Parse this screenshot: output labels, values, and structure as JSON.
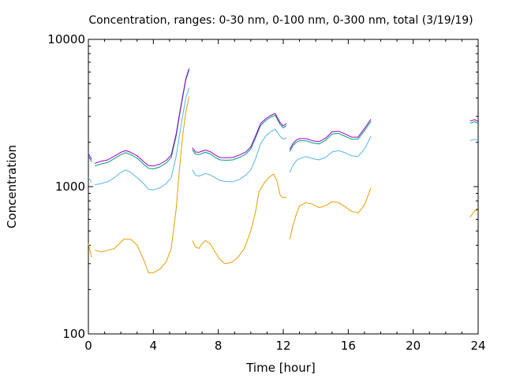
{
  "chart_data": {
    "type": "line",
    "title": "Concentration, ranges: 0-30 nm, 0-100 nm, 0-300 nm, total (3/19/19)",
    "xlabel": "Time [hour]",
    "ylabel": "Concentration",
    "xlim": [
      0,
      24
    ],
    "ylim": [
      100,
      10000
    ],
    "yscale": "log",
    "grid": false,
    "legend": "none",
    "x_ticks": [
      0,
      4,
      8,
      12,
      16,
      20,
      24
    ],
    "x_tick_labels": [
      "0",
      "4",
      "8",
      "12",
      "16",
      "20",
      "24"
    ],
    "y_ticks": [
      100,
      1000,
      10000
    ],
    "y_tick_labels": [
      "100",
      "1000",
      "10000"
    ],
    "series": [
      {
        "color": "#e69f00",
        "segments": [
          [
            [
              0,
              410
            ],
            [
              0.2,
              330
            ]
          ],
          [
            [
              0.4,
              370
            ],
            [
              0.8,
              360
            ],
            [
              1.2,
              370
            ],
            [
              1.6,
              380
            ],
            [
              2.0,
              420
            ],
            [
              2.2,
              440
            ],
            [
              2.6,
              440
            ],
            [
              3.0,
              400
            ],
            [
              3.4,
              320
            ],
            [
              3.7,
              260
            ],
            [
              4.0,
              260
            ],
            [
              4.4,
              275
            ],
            [
              4.8,
              310
            ],
            [
              5.1,
              380
            ],
            [
              5.4,
              700
            ],
            [
              5.6,
              1300
            ],
            [
              5.8,
              2200
            ],
            [
              6.0,
              3200
            ],
            [
              6.2,
              4100
            ]
          ],
          [
            [
              6.4,
              430
            ],
            [
              6.6,
              390
            ],
            [
              6.8,
              380
            ],
            [
              7.0,
              410
            ],
            [
              7.2,
              430
            ],
            [
              7.5,
              410
            ],
            [
              7.8,
              360
            ],
            [
              8.1,
              320
            ],
            [
              8.4,
              300
            ],
            [
              8.8,
              305
            ],
            [
              9.2,
              330
            ],
            [
              9.6,
              380
            ],
            [
              10.0,
              500
            ],
            [
              10.3,
              680
            ],
            [
              10.5,
              920
            ],
            [
              10.8,
              1050
            ],
            [
              11.1,
              1150
            ],
            [
              11.4,
              1220
            ],
            [
              11.6,
              1100
            ],
            [
              11.8,
              880
            ],
            [
              12.0,
              840
            ],
            [
              12.2,
              850
            ]
          ],
          [
            [
              12.4,
              440
            ],
            [
              12.6,
              550
            ],
            [
              12.8,
              650
            ],
            [
              13.0,
              740
            ],
            [
              13.4,
              780
            ],
            [
              13.8,
              760
            ],
            [
              14.2,
              720
            ],
            [
              14.6,
              740
            ],
            [
              15.0,
              790
            ],
            [
              15.4,
              780
            ],
            [
              15.8,
              730
            ],
            [
              16.2,
              680
            ],
            [
              16.6,
              660
            ],
            [
              17.0,
              750
            ],
            [
              17.4,
              980
            ]
          ],
          [
            [
              23.5,
              620
            ],
            [
              23.8,
              690
            ],
            [
              24,
              690
            ]
          ]
        ]
      },
      {
        "color": "#56b4e9",
        "segments": [
          [
            [
              0,
              1150
            ],
            [
              0.2,
              1070
            ]
          ],
          [
            [
              0.4,
              1030
            ],
            [
              0.8,
              1050
            ],
            [
              1.2,
              1080
            ],
            [
              1.6,
              1150
            ],
            [
              2.0,
              1250
            ],
            [
              2.3,
              1300
            ],
            [
              2.6,
              1250
            ],
            [
              3.0,
              1150
            ],
            [
              3.4,
              1050
            ],
            [
              3.7,
              960
            ],
            [
              4.0,
              950
            ],
            [
              4.4,
              980
            ],
            [
              4.8,
              1050
            ],
            [
              5.1,
              1150
            ],
            [
              5.4,
              1600
            ],
            [
              5.6,
              2200
            ],
            [
              5.8,
              3000
            ],
            [
              6.0,
              4000
            ],
            [
              6.2,
              4700
            ]
          ],
          [
            [
              6.4,
              1300
            ],
            [
              6.6,
              1200
            ],
            [
              6.8,
              1180
            ],
            [
              7.0,
              1200
            ],
            [
              7.2,
              1230
            ],
            [
              7.5,
              1200
            ],
            [
              7.8,
              1150
            ],
            [
              8.1,
              1100
            ],
            [
              8.5,
              1080
            ],
            [
              8.9,
              1080
            ],
            [
              9.3,
              1120
            ],
            [
              9.7,
              1200
            ],
            [
              10.0,
              1300
            ],
            [
              10.3,
              1550
            ],
            [
              10.6,
              1950
            ],
            [
              10.9,
              2200
            ],
            [
              11.2,
              2350
            ],
            [
              11.5,
              2450
            ],
            [
              11.8,
              2200
            ],
            [
              12.0,
              2100
            ],
            [
              12.2,
              2150
            ]
          ],
          [
            [
              12.4,
              1250
            ],
            [
              12.6,
              1400
            ],
            [
              12.8,
              1500
            ],
            [
              13.0,
              1550
            ],
            [
              13.4,
              1600
            ],
            [
              13.8,
              1550
            ],
            [
              14.2,
              1520
            ],
            [
              14.6,
              1580
            ],
            [
              15.0,
              1720
            ],
            [
              15.4,
              1760
            ],
            [
              15.8,
              1700
            ],
            [
              16.2,
              1620
            ],
            [
              16.6,
              1600
            ],
            [
              17.0,
              1800
            ],
            [
              17.4,
              2200
            ]
          ],
          [
            [
              23.5,
              2050
            ],
            [
              23.8,
              2100
            ],
            [
              24,
              2050
            ]
          ]
        ]
      },
      {
        "color": "#009e73",
        "segments": [
          [
            [
              0,
              1620
            ],
            [
              0.2,
              1470
            ]
          ],
          [
            [
              0.4,
              1380
            ],
            [
              0.8,
              1430
            ],
            [
              1.2,
              1460
            ],
            [
              1.6,
              1550
            ],
            [
              2.0,
              1650
            ],
            [
              2.3,
              1700
            ],
            [
              2.6,
              1650
            ],
            [
              3.0,
              1560
            ],
            [
              3.4,
              1420
            ],
            [
              3.7,
              1330
            ],
            [
              4.0,
              1320
            ],
            [
              4.4,
              1360
            ],
            [
              4.8,
              1450
            ],
            [
              5.1,
              1580
            ],
            [
              5.4,
              2200
            ],
            [
              5.6,
              3000
            ],
            [
              5.8,
              4000
            ],
            [
              6.0,
              5300
            ],
            [
              6.2,
              6200
            ]
          ],
          [
            [
              6.4,
              1780
            ],
            [
              6.6,
              1660
            ],
            [
              6.8,
              1650
            ],
            [
              7.0,
              1680
            ],
            [
              7.2,
              1710
            ],
            [
              7.5,
              1670
            ],
            [
              7.8,
              1580
            ],
            [
              8.1,
              1520
            ],
            [
              8.5,
              1510
            ],
            [
              8.9,
              1520
            ],
            [
              9.3,
              1580
            ],
            [
              9.7,
              1660
            ],
            [
              10.0,
              1800
            ],
            [
              10.3,
              2150
            ],
            [
              10.6,
              2600
            ],
            [
              10.9,
              2800
            ],
            [
              11.2,
              2950
            ],
            [
              11.5,
              3050
            ],
            [
              11.8,
              2650
            ],
            [
              12.0,
              2500
            ],
            [
              12.2,
              2600
            ]
          ],
          [
            [
              12.4,
              1730
            ],
            [
              12.6,
              1900
            ],
            [
              12.8,
              2000
            ],
            [
              13.0,
              2050
            ],
            [
              13.4,
              2050
            ],
            [
              13.8,
              1980
            ],
            [
              14.2,
              1950
            ],
            [
              14.6,
              2060
            ],
            [
              15.0,
              2280
            ],
            [
              15.4,
              2300
            ],
            [
              15.8,
              2200
            ],
            [
              16.2,
              2100
            ],
            [
              16.6,
              2100
            ],
            [
              17.0,
              2400
            ],
            [
              17.4,
              2780
            ]
          ],
          [
            [
              23.5,
              2700
            ],
            [
              23.8,
              2760
            ],
            [
              24,
              2680
            ]
          ]
        ]
      },
      {
        "color": "#9400d3",
        "segments": [
          [
            [
              0,
              1680
            ],
            [
              0.2,
              1530
            ]
          ],
          [
            [
              0.4,
              1440
            ],
            [
              0.8,
              1490
            ],
            [
              1.2,
              1520
            ],
            [
              1.6,
              1610
            ],
            [
              2.0,
              1710
            ],
            [
              2.3,
              1760
            ],
            [
              2.6,
              1710
            ],
            [
              3.0,
              1620
            ],
            [
              3.4,
              1480
            ],
            [
              3.7,
              1390
            ],
            [
              4.0,
              1380
            ],
            [
              4.4,
              1420
            ],
            [
              4.8,
              1510
            ],
            [
              5.1,
              1640
            ],
            [
              5.4,
              2270
            ],
            [
              5.6,
              3080
            ],
            [
              5.8,
              4100
            ],
            [
              6.0,
              5400
            ],
            [
              6.2,
              6350
            ]
          ],
          [
            [
              6.4,
              1840
            ],
            [
              6.6,
              1720
            ],
            [
              6.8,
              1710
            ],
            [
              7.0,
              1740
            ],
            [
              7.2,
              1770
            ],
            [
              7.5,
              1730
            ],
            [
              7.8,
              1640
            ],
            [
              8.1,
              1580
            ],
            [
              8.5,
              1570
            ],
            [
              8.9,
              1580
            ],
            [
              9.3,
              1640
            ],
            [
              9.7,
              1720
            ],
            [
              10.0,
              1860
            ],
            [
              10.3,
              2220
            ],
            [
              10.6,
              2680
            ],
            [
              10.9,
              2880
            ],
            [
              11.2,
              3030
            ],
            [
              11.5,
              3140
            ],
            [
              11.8,
              2730
            ],
            [
              12.0,
              2580
            ],
            [
              12.2,
              2680
            ]
          ],
          [
            [
              12.4,
              1790
            ],
            [
              12.6,
              1960
            ],
            [
              12.8,
              2070
            ],
            [
              13.0,
              2120
            ],
            [
              13.4,
              2120
            ],
            [
              13.8,
              2050
            ],
            [
              14.2,
              2020
            ],
            [
              14.6,
              2130
            ],
            [
              15.0,
              2360
            ],
            [
              15.4,
              2380
            ],
            [
              15.8,
              2280
            ],
            [
              16.2,
              2170
            ],
            [
              16.6,
              2170
            ],
            [
              17.0,
              2480
            ],
            [
              17.4,
              2870
            ]
          ],
          [
            [
              23.5,
              2790
            ],
            [
              23.8,
              2850
            ],
            [
              24,
              2770
            ]
          ]
        ]
      }
    ]
  }
}
